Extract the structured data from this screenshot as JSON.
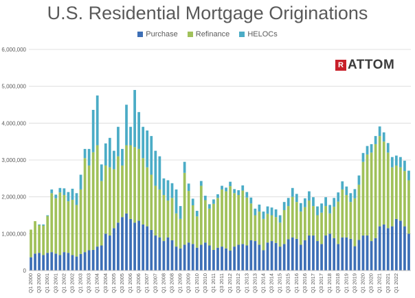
{
  "chart_data": {
    "type": "bar",
    "stacked": true,
    "title": "U.S. Residential Mortgage Originations",
    "xlabel": "",
    "ylabel": "",
    "ylim": [
      0,
      6000000
    ],
    "y_ticks": [
      "0",
      "1,000,000",
      "2,000,000",
      "3,000,000",
      "4,000,000",
      "5,000,000",
      "6,000,000"
    ],
    "grid": true,
    "legend_position": "top",
    "x_tick_labels": [
      "Q1 2000",
      "Q3 2000",
      "Q1 2001",
      "Q3 2001",
      "Q1 2002",
      "Q3 2002",
      "Q1 2003",
      "Q3 2003",
      "Q1 2004",
      "Q3 2004",
      "Q1 2005",
      "Q3 2005",
      "Q1 2006",
      "Q3 2006",
      "Q1 2007",
      "Q3 2007",
      "Q1 2008",
      "Q3 2008",
      "Q1 2009",
      "Q3 2009",
      "Q1 2010",
      "Q3 2010",
      "Q1 2011",
      "Q3 2011",
      "Q1 2012",
      "Q3 2012",
      "Q1 2013",
      "Q3 2013",
      "Q1 2014",
      "Q3 2014",
      "Q1 2015",
      "Q3 2015",
      "Q1 2016",
      "Q3 2016",
      "Q1 2017",
      "Q3 2017",
      "Q1 2018",
      "Q3 2018",
      "Q1 2019",
      "Q3 2019",
      "Q1 2020",
      "Q3 2020",
      "Q1 2021",
      "Q3 2021",
      "Q1 2022"
    ],
    "series": [
      {
        "name": "Purchase",
        "color": "#3d6fb6",
        "values": [
          360000,
          460000,
          480000,
          420000,
          480000,
          500000,
          460000,
          420000,
          500000,
          480000,
          420000,
          380000,
          450000,
          500000,
          550000,
          560000,
          650000,
          680000,
          1000000,
          950000,
          1150000,
          1300000,
          1450000,
          1550000,
          1400000,
          1300000,
          1350000,
          1250000,
          1200000,
          1100000,
          950000,
          900000,
          800000,
          900000,
          820000,
          650000,
          600000,
          700000,
          760000,
          720000,
          620000,
          700000,
          760000,
          680000,
          560000,
          620000,
          650000,
          600000,
          540000,
          650000,
          700000,
          720000,
          680000,
          820000,
          800000,
          700000,
          550000,
          760000,
          800000,
          750000,
          650000,
          720000,
          850000,
          900000,
          860000,
          700000,
          820000,
          950000,
          950000,
          800000,
          720000,
          950000,
          1000000,
          880000,
          720000,
          900000,
          900000,
          860000,
          660000,
          830000,
          950000,
          950000,
          800000,
          880000,
          1200000,
          1250000,
          1150000,
          1200000,
          1400000,
          1350000,
          1200000,
          1000000
        ]
      },
      {
        "name": "Refinance",
        "color": "#a0c15a",
        "values": [
          750000,
          880000,
          750000,
          800000,
          1000000,
          1600000,
          1500000,
          1700000,
          1550000,
          1400000,
          1500000,
          1400000,
          1750000,
          2550000,
          2300000,
          2650000,
          2750000,
          1750000,
          1850000,
          1850000,
          1600000,
          1800000,
          1400000,
          1850000,
          2000000,
          2050000,
          1950000,
          1800000,
          1600000,
          1500000,
          1350000,
          1300000,
          1250000,
          1000000,
          1150000,
          900000,
          800000,
          1950000,
          1400000,
          1050000,
          850000,
          1600000,
          1150000,
          1000000,
          1250000,
          1350000,
          1550000,
          1550000,
          1750000,
          1450000,
          1350000,
          1450000,
          1300000,
          1000000,
          700000,
          900000,
          850000,
          780000,
          700000,
          700000,
          650000,
          920000,
          900000,
          1100000,
          1000000,
          900000,
          900000,
          950000,
          800000,
          700000,
          850000,
          800000,
          550000,
          850000,
          1150000,
          1300000,
          1150000,
          1000000,
          1300000,
          1500000,
          2000000,
          2200000,
          2400000,
          2550000,
          2450000,
          2250000,
          2050000,
          1600000,
          1450000,
          1450000,
          1500000,
          1450000
        ]
      },
      {
        "name": "HELOCs",
        "color": "#4bacc6",
        "values": [
          0,
          0,
          20000,
          30000,
          20000,
          100000,
          100000,
          120000,
          180000,
          250000,
          300000,
          320000,
          400000,
          250000,
          450000,
          1150000,
          1350000,
          450000,
          600000,
          800000,
          500000,
          800000,
          450000,
          1100000,
          500000,
          1550000,
          1000000,
          850000,
          1000000,
          1050000,
          950000,
          900000,
          450000,
          550000,
          400000,
          650000,
          350000,
          300000,
          200000,
          180000,
          150000,
          130000,
          120000,
          120000,
          120000,
          100000,
          100000,
          100000,
          120000,
          110000,
          130000,
          140000,
          150000,
          160000,
          180000,
          190000,
          200000,
          200000,
          210000,
          210000,
          200000,
          220000,
          220000,
          240000,
          220000,
          230000,
          240000,
          250000,
          240000,
          240000,
          250000,
          240000,
          230000,
          240000,
          250000,
          220000,
          230000,
          240000,
          250000,
          250000,
          240000,
          230000,
          230000,
          220000,
          260000,
          250000,
          260000,
          280000,
          270000,
          280000,
          280000,
          260000
        ]
      }
    ]
  },
  "logo": {
    "text": "ATTOM",
    "mark_letter": "R"
  }
}
